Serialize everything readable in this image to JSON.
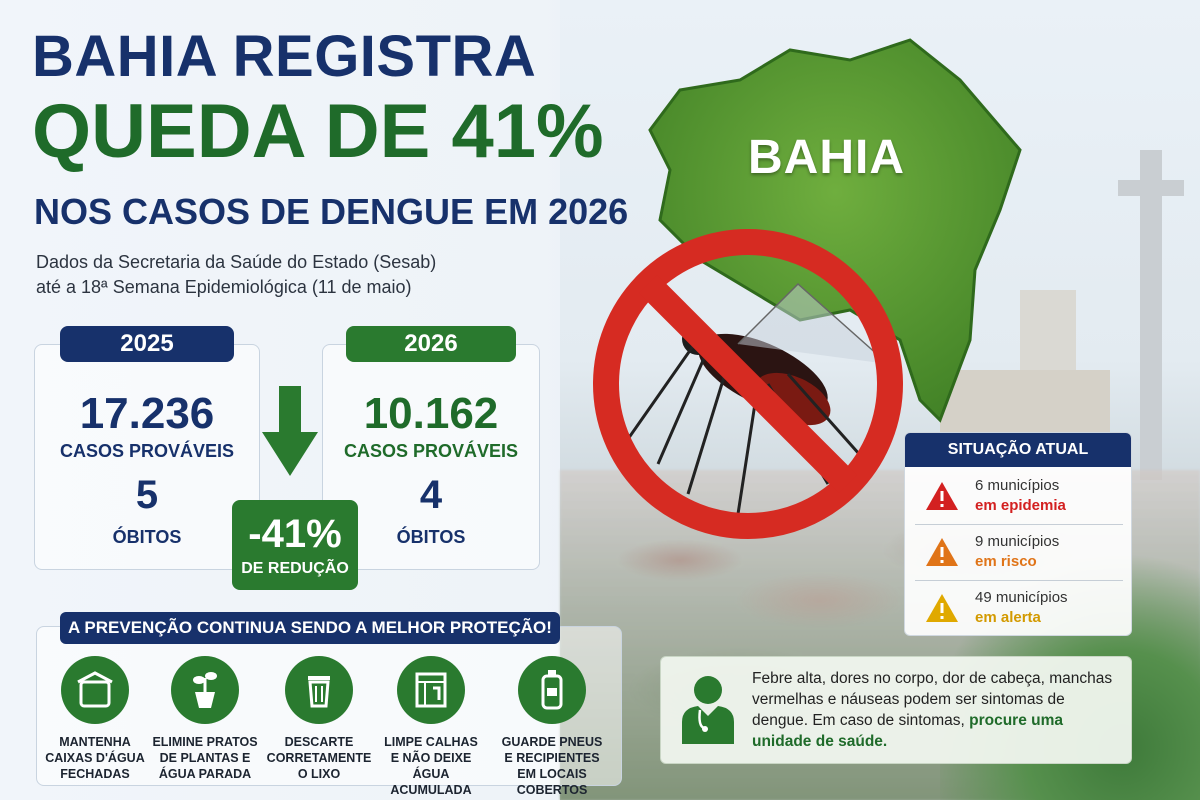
{
  "headline": {
    "line1": "BAHIA REGISTRA",
    "line2": "QUEDA DE 41%",
    "line3": "NOS CASOS DE DENGUE EM 2026"
  },
  "source": {
    "line1": "Dados da Secretaria da Saúde do Estado (Sesab)",
    "line2": "até a 18ª Semana Epidemiológica (11 de maio)"
  },
  "stats": {
    "y2025": {
      "year": "2025",
      "cases": "17.236",
      "cases_label": "CASOS PROVÁVEIS",
      "deaths": "5",
      "deaths_label": "ÓBITOS"
    },
    "y2026": {
      "year": "2026",
      "cases": "10.162",
      "cases_label": "CASOS PROVÁVEIS",
      "deaths": "4",
      "deaths_label": "ÓBITOS"
    },
    "reduction": {
      "value": "-41%",
      "label": "DE REDUÇÃO"
    }
  },
  "prevention": {
    "title": "A PREVENÇÃO CONTINUA SENDO A MELHOR PROTEÇÃO!",
    "tips": [
      {
        "icon": "water-tank-icon",
        "lines": [
          "MANTENHA",
          "CAIXAS D'ÁGUA",
          "FECHADAS"
        ]
      },
      {
        "icon": "plant-pot-icon",
        "lines": [
          "ELIMINE PRATOS",
          "DE PLANTAS E",
          "ÁGUA PARADA"
        ]
      },
      {
        "icon": "trash-can-icon",
        "lines": [
          "DESCARTE",
          "CORRETAMENTE",
          "O LIXO"
        ]
      },
      {
        "icon": "gutter-icon",
        "lines": [
          "LIMPE CALHAS",
          "E NÃO DEIXE",
          "ÁGUA ACUMULADA"
        ]
      },
      {
        "icon": "bottle-icon",
        "lines": [
          "GUARDE PNEUS",
          "E RECIPIENTES",
          "EM LOCAIS COBERTOS"
        ]
      }
    ]
  },
  "map": {
    "label": "BAHIA"
  },
  "situation": {
    "title": "SITUAÇÃO ATUAL",
    "rows": [
      {
        "line1": "6 municípios",
        "line2": "em epidemia",
        "color": "#d32020"
      },
      {
        "line1": "9 municípios",
        "line2": "em risco",
        "color": "#e07418"
      },
      {
        "line1": "49 municípios",
        "line2": "em alerta",
        "color": "#e0a900"
      }
    ]
  },
  "symptoms": {
    "text": "Febre alta, dores no corpo, dor de cabeça, manchas vermelhas e náuseas podem ser sintomas de dengue. Em caso de sintomas, ",
    "highlight": "procure uma unidade de saúde."
  },
  "colors": {
    "navy": "#17316b",
    "green": "#2a7a2f",
    "red": "#d32020"
  }
}
